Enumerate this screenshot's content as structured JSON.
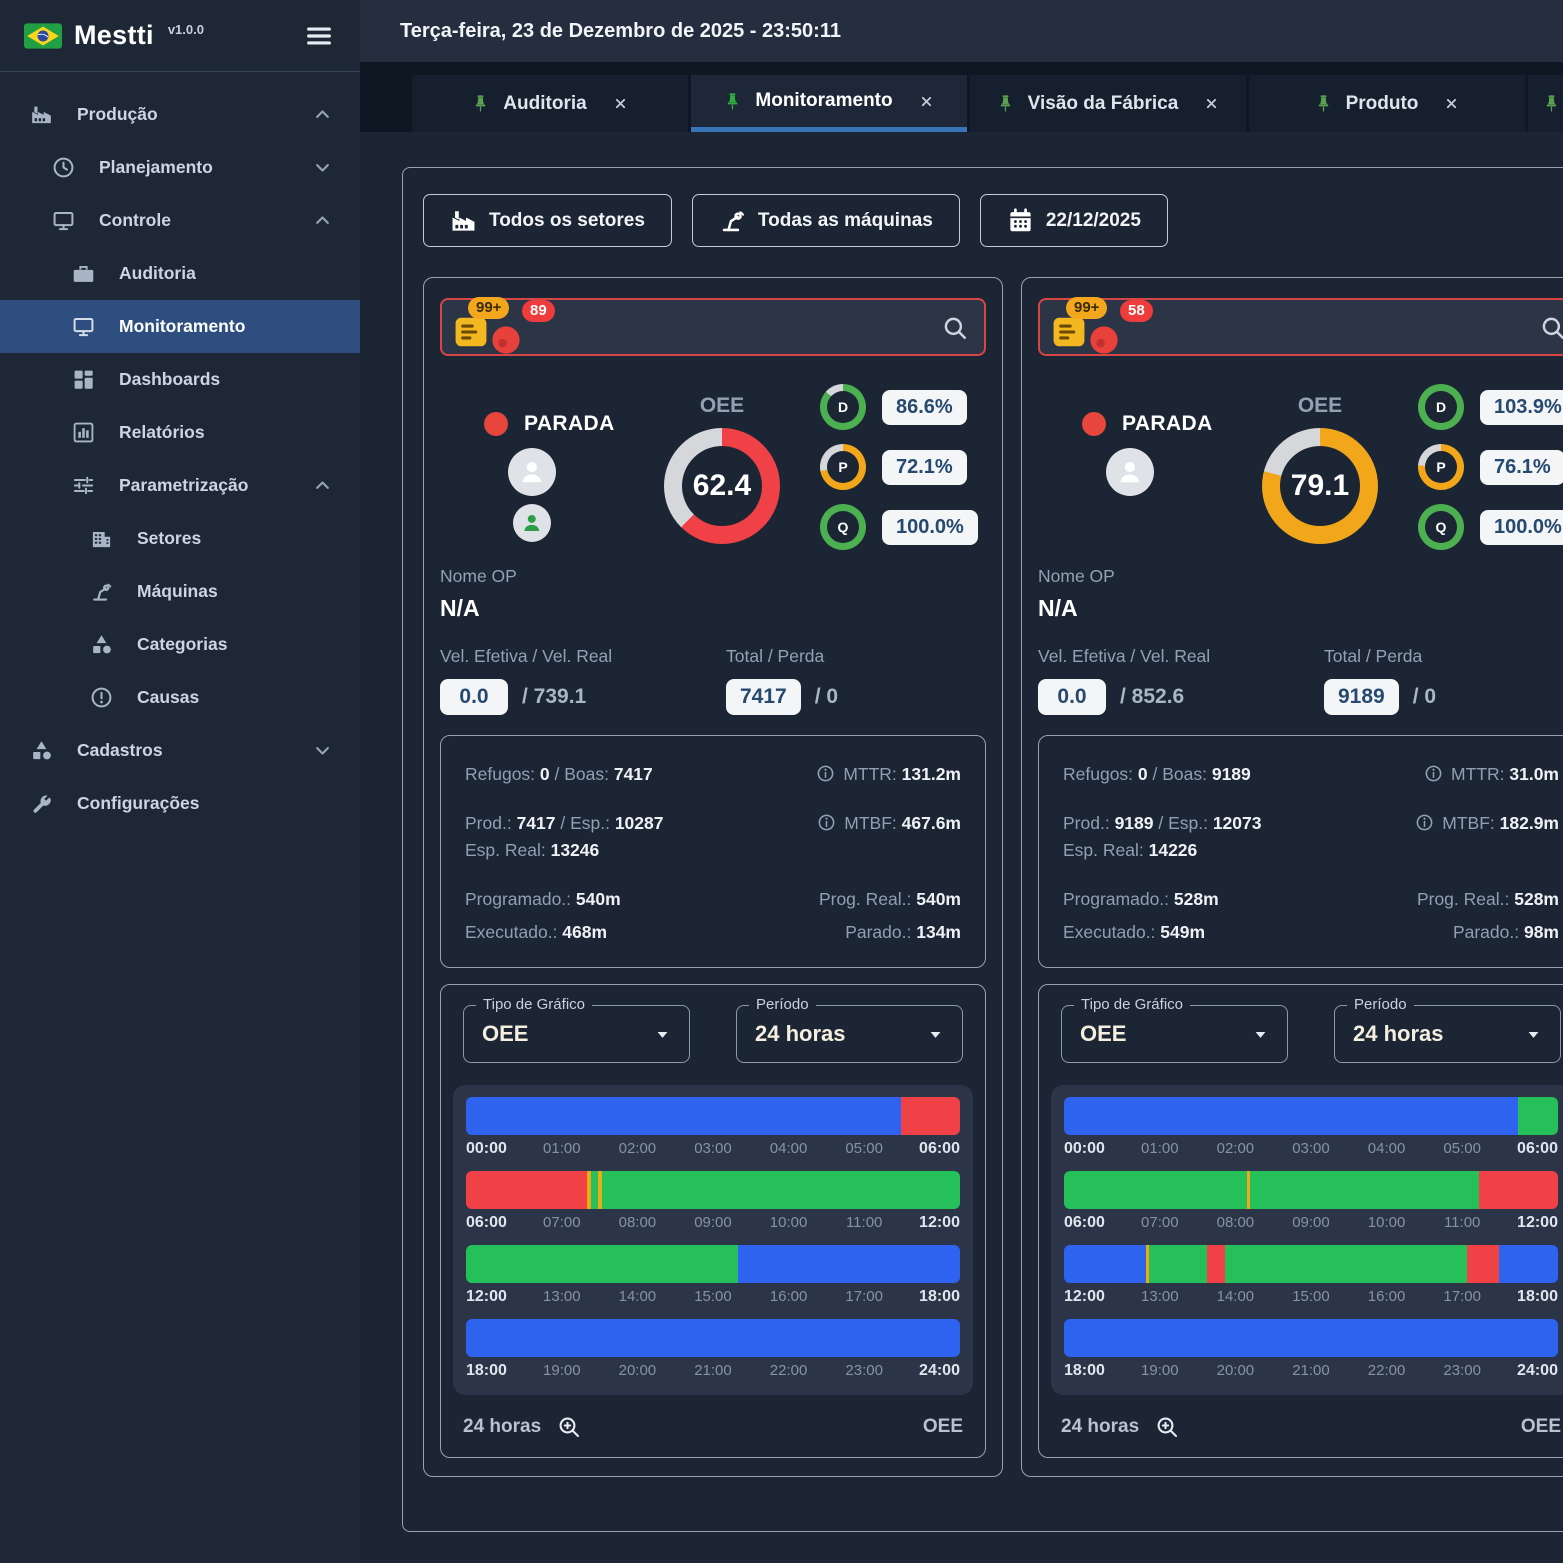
{
  "app": {
    "brand": "Mestti",
    "version": "v1.0.0"
  },
  "topbar": {
    "datetime": "Terça-feira, 23 de Dezembro de 2025 - 23:50:11"
  },
  "tabs": [
    {
      "label": "Auditoria",
      "active": false,
      "partial": false
    },
    {
      "label": "Monitoramento",
      "active": true,
      "partial": false
    },
    {
      "label": "Visão da Fábrica",
      "active": false,
      "partial": false
    },
    {
      "label": "Produto",
      "active": false,
      "partial": false
    },
    {
      "label": "",
      "active": false,
      "partial": true
    }
  ],
  "sidebar": {
    "items": [
      {
        "label": "Produção",
        "icon": "factory-icon",
        "level": 1,
        "chevron": "up",
        "active": false
      },
      {
        "label": "Planejamento",
        "icon": "clock-icon",
        "level": 2,
        "chevron": "down",
        "active": false
      },
      {
        "label": "Controle",
        "icon": "monitor-icon",
        "level": 2,
        "chevron": "up",
        "active": false
      },
      {
        "label": "Auditoria",
        "icon": "briefcase-icon",
        "level": 3,
        "chevron": null,
        "active": false
      },
      {
        "label": "Monitoramento",
        "icon": "monitor-icon",
        "level": 3,
        "chevron": null,
        "active": true
      },
      {
        "label": "Dashboards",
        "icon": "grid-icon",
        "level": 3,
        "chevron": null,
        "active": false
      },
      {
        "label": "Relatórios",
        "icon": "bar-chart-icon",
        "level": 3,
        "chevron": null,
        "active": false
      },
      {
        "label": "Parametrização",
        "icon": "sliders-icon",
        "level": 3,
        "chevron": "up",
        "active": false
      },
      {
        "label": "Setores",
        "icon": "building-icon",
        "level": 4,
        "chevron": null,
        "active": false
      },
      {
        "label": "Máquinas",
        "icon": "robot-arm-icon",
        "level": 4,
        "chevron": null,
        "active": false
      },
      {
        "label": "Categorias",
        "icon": "shapes-icon",
        "level": 4,
        "chevron": null,
        "active": false
      },
      {
        "label": "Causas",
        "icon": "alert-circle-icon",
        "level": 4,
        "chevron": null,
        "active": false
      },
      {
        "label": "Cadastros",
        "icon": "shapes-icon",
        "level": 1,
        "chevron": "down",
        "active": false
      },
      {
        "label": "Configurações",
        "icon": "wrench-icon",
        "level": 1,
        "chevron": null,
        "active": false
      }
    ]
  },
  "filters": {
    "sectors": "Todos os setores",
    "machines": "Todas as máquinas",
    "date": "22/12/2025"
  },
  "card_labels": {
    "status": "PARADA",
    "oee_label": "OEE",
    "op_label": "Nome OP",
    "vel_label": "Vel. Efetiva / Vel. Real",
    "total_label": "Total / Perda",
    "chart_type_label": "Tipo de Gráfico",
    "chart_type_value": "OEE",
    "period_label": "Período",
    "period_value": "24 horas",
    "footer_period": "24 horas",
    "footer_metric": "OEE"
  },
  "colors": {
    "blue": "#2d63ee",
    "green": "#25c05a",
    "red": "#ef4146",
    "yellow": "#edaa12",
    "ring_green": "#4caf50",
    "ring_orange": "#f2a71b",
    "track": "#d5d7da",
    "accent_tab": "#3a74b8",
    "search_border": "#d94444"
  },
  "machines": [
    {
      "badge_orders": "99+",
      "badge_alerts": "89",
      "avatars": [
        "light",
        "green"
      ],
      "oee": {
        "value": "62.4",
        "pct": 62.4,
        "color": "red"
      },
      "rings": [
        {
          "letter": "D",
          "value": "86.6%",
          "pct": 86.6,
          "color": "ring_green"
        },
        {
          "letter": "P",
          "value": "72.1%",
          "pct": 72.1,
          "color": "ring_orange"
        },
        {
          "letter": "Q",
          "value": "100.0%",
          "pct": 100,
          "color": "ring_green"
        }
      ],
      "op_value": "N/A",
      "vel_badge": "0.0",
      "vel_rest": "/ 739.1",
      "total_badge": "7417",
      "total_rest": "/ 0",
      "stats_rows": [
        {
          "left": [
            [
              "Refugos: ",
              "0"
            ],
            [
              " / Boas: ",
              "7417"
            ]
          ],
          "right": {
            "info": true,
            "parts": [
              [
                "MTTR: ",
                "131.2m"
              ]
            ]
          }
        },
        {
          "left": [
            [
              "Prod.: ",
              "7417"
            ],
            [
              " / Esp.: ",
              "10287"
            ]
          ],
          "right": {
            "info": true,
            "parts": [
              [
                "MTBF: ",
                "467.6m"
              ]
            ]
          }
        },
        {
          "left": [
            [
              "Esp. Real: ",
              "13246"
            ]
          ],
          "right": null
        },
        {
          "left": [
            [
              "Programado.: ",
              "540m"
            ]
          ],
          "right": {
            "info": false,
            "parts": [
              [
                "Prog. Real.: ",
                "540m"
              ]
            ]
          }
        },
        {
          "left": [
            [
              "Executado.: ",
              "468m"
            ]
          ],
          "right": {
            "info": false,
            "parts": [
              [
                "Parado.: ",
                "134m"
              ]
            ]
          }
        }
      ],
      "timeline": [
        {
          "start": "00:00",
          "mids": [
            "01:00",
            "02:00",
            "03:00",
            "04:00",
            "05:00"
          ],
          "end": "06:00",
          "segments": [
            [
              "blue",
              88
            ],
            [
              "red",
              12
            ]
          ]
        },
        {
          "start": "06:00",
          "mids": [
            "07:00",
            "08:00",
            "09:00",
            "10:00",
            "11:00"
          ],
          "end": "12:00",
          "segments": [
            [
              "red",
              24.5
            ],
            [
              "yellow",
              0.8
            ],
            [
              "green",
              1.5
            ],
            [
              "yellow",
              0.8
            ],
            [
              "green",
              72.4
            ]
          ]
        },
        {
          "start": "12:00",
          "mids": [
            "13:00",
            "14:00",
            "15:00",
            "16:00",
            "17:00"
          ],
          "end": "18:00",
          "segments": [
            [
              "green",
              55
            ],
            [
              "blue",
              45
            ]
          ]
        },
        {
          "start": "18:00",
          "mids": [
            "19:00",
            "20:00",
            "21:00",
            "22:00",
            "23:00"
          ],
          "end": "24:00",
          "segments": [
            [
              "blue",
              100
            ]
          ]
        }
      ]
    },
    {
      "badge_orders": "99+",
      "badge_alerts": "58",
      "avatars": [
        "light"
      ],
      "oee": {
        "value": "79.1",
        "pct": 79.1,
        "color": "ring_orange"
      },
      "rings": [
        {
          "letter": "D",
          "value": "103.9%",
          "pct": 100,
          "color": "ring_green"
        },
        {
          "letter": "P",
          "value": "76.1%",
          "pct": 76.1,
          "color": "ring_orange"
        },
        {
          "letter": "Q",
          "value": "100.0%",
          "pct": 100,
          "color": "ring_green"
        }
      ],
      "op_value": "N/A",
      "vel_badge": "0.0",
      "vel_rest": "/ 852.6",
      "total_badge": "9189",
      "total_rest": "/ 0",
      "stats_rows": [
        {
          "left": [
            [
              "Refugos: ",
              "0"
            ],
            [
              " / Boas: ",
              "9189"
            ]
          ],
          "right": {
            "info": true,
            "parts": [
              [
                "MTTR: ",
                "31.0m"
              ]
            ]
          }
        },
        {
          "left": [
            [
              "Prod.: ",
              "9189"
            ],
            [
              " / Esp.: ",
              "12073"
            ]
          ],
          "right": {
            "info": true,
            "parts": [
              [
                "MTBF: ",
                "182.9m"
              ]
            ]
          }
        },
        {
          "left": [
            [
              "Esp. Real: ",
              "14226"
            ]
          ],
          "right": null
        },
        {
          "left": [
            [
              "Programado.: ",
              "528m"
            ]
          ],
          "right": {
            "info": false,
            "parts": [
              [
                "Prog. Real.: ",
                "528m"
              ]
            ]
          }
        },
        {
          "left": [
            [
              "Executado.: ",
              "549m"
            ]
          ],
          "right": {
            "info": false,
            "parts": [
              [
                "Parado.: ",
                "98m"
              ]
            ]
          }
        }
      ],
      "timeline": [
        {
          "start": "00:00",
          "mids": [
            "01:00",
            "02:00",
            "03:00",
            "04:00",
            "05:00"
          ],
          "end": "06:00",
          "segments": [
            [
              "blue",
              92
            ],
            [
              "green",
              8
            ]
          ]
        },
        {
          "start": "06:00",
          "mids": [
            "07:00",
            "08:00",
            "09:00",
            "10:00",
            "11:00"
          ],
          "end": "12:00",
          "segments": [
            [
              "green",
              37
            ],
            [
              "yellow",
              0.6
            ],
            [
              "green",
              46.4
            ],
            [
              "red",
              16
            ]
          ]
        },
        {
          "start": "12:00",
          "mids": [
            "13:00",
            "14:00",
            "15:00",
            "16:00",
            "17:00"
          ],
          "end": "18:00",
          "segments": [
            [
              "blue",
              16.5
            ],
            [
              "yellow",
              0.8
            ],
            [
              "green",
              11.7
            ],
            [
              "red",
              3.5
            ],
            [
              "green",
              49
            ],
            [
              "red",
              6.5
            ],
            [
              "blue",
              12
            ]
          ]
        },
        {
          "start": "18:00",
          "mids": [
            "19:00",
            "20:00",
            "21:00",
            "22:00",
            "23:00"
          ],
          "end": "24:00",
          "segments": [
            [
              "blue",
              100
            ]
          ]
        }
      ]
    }
  ]
}
